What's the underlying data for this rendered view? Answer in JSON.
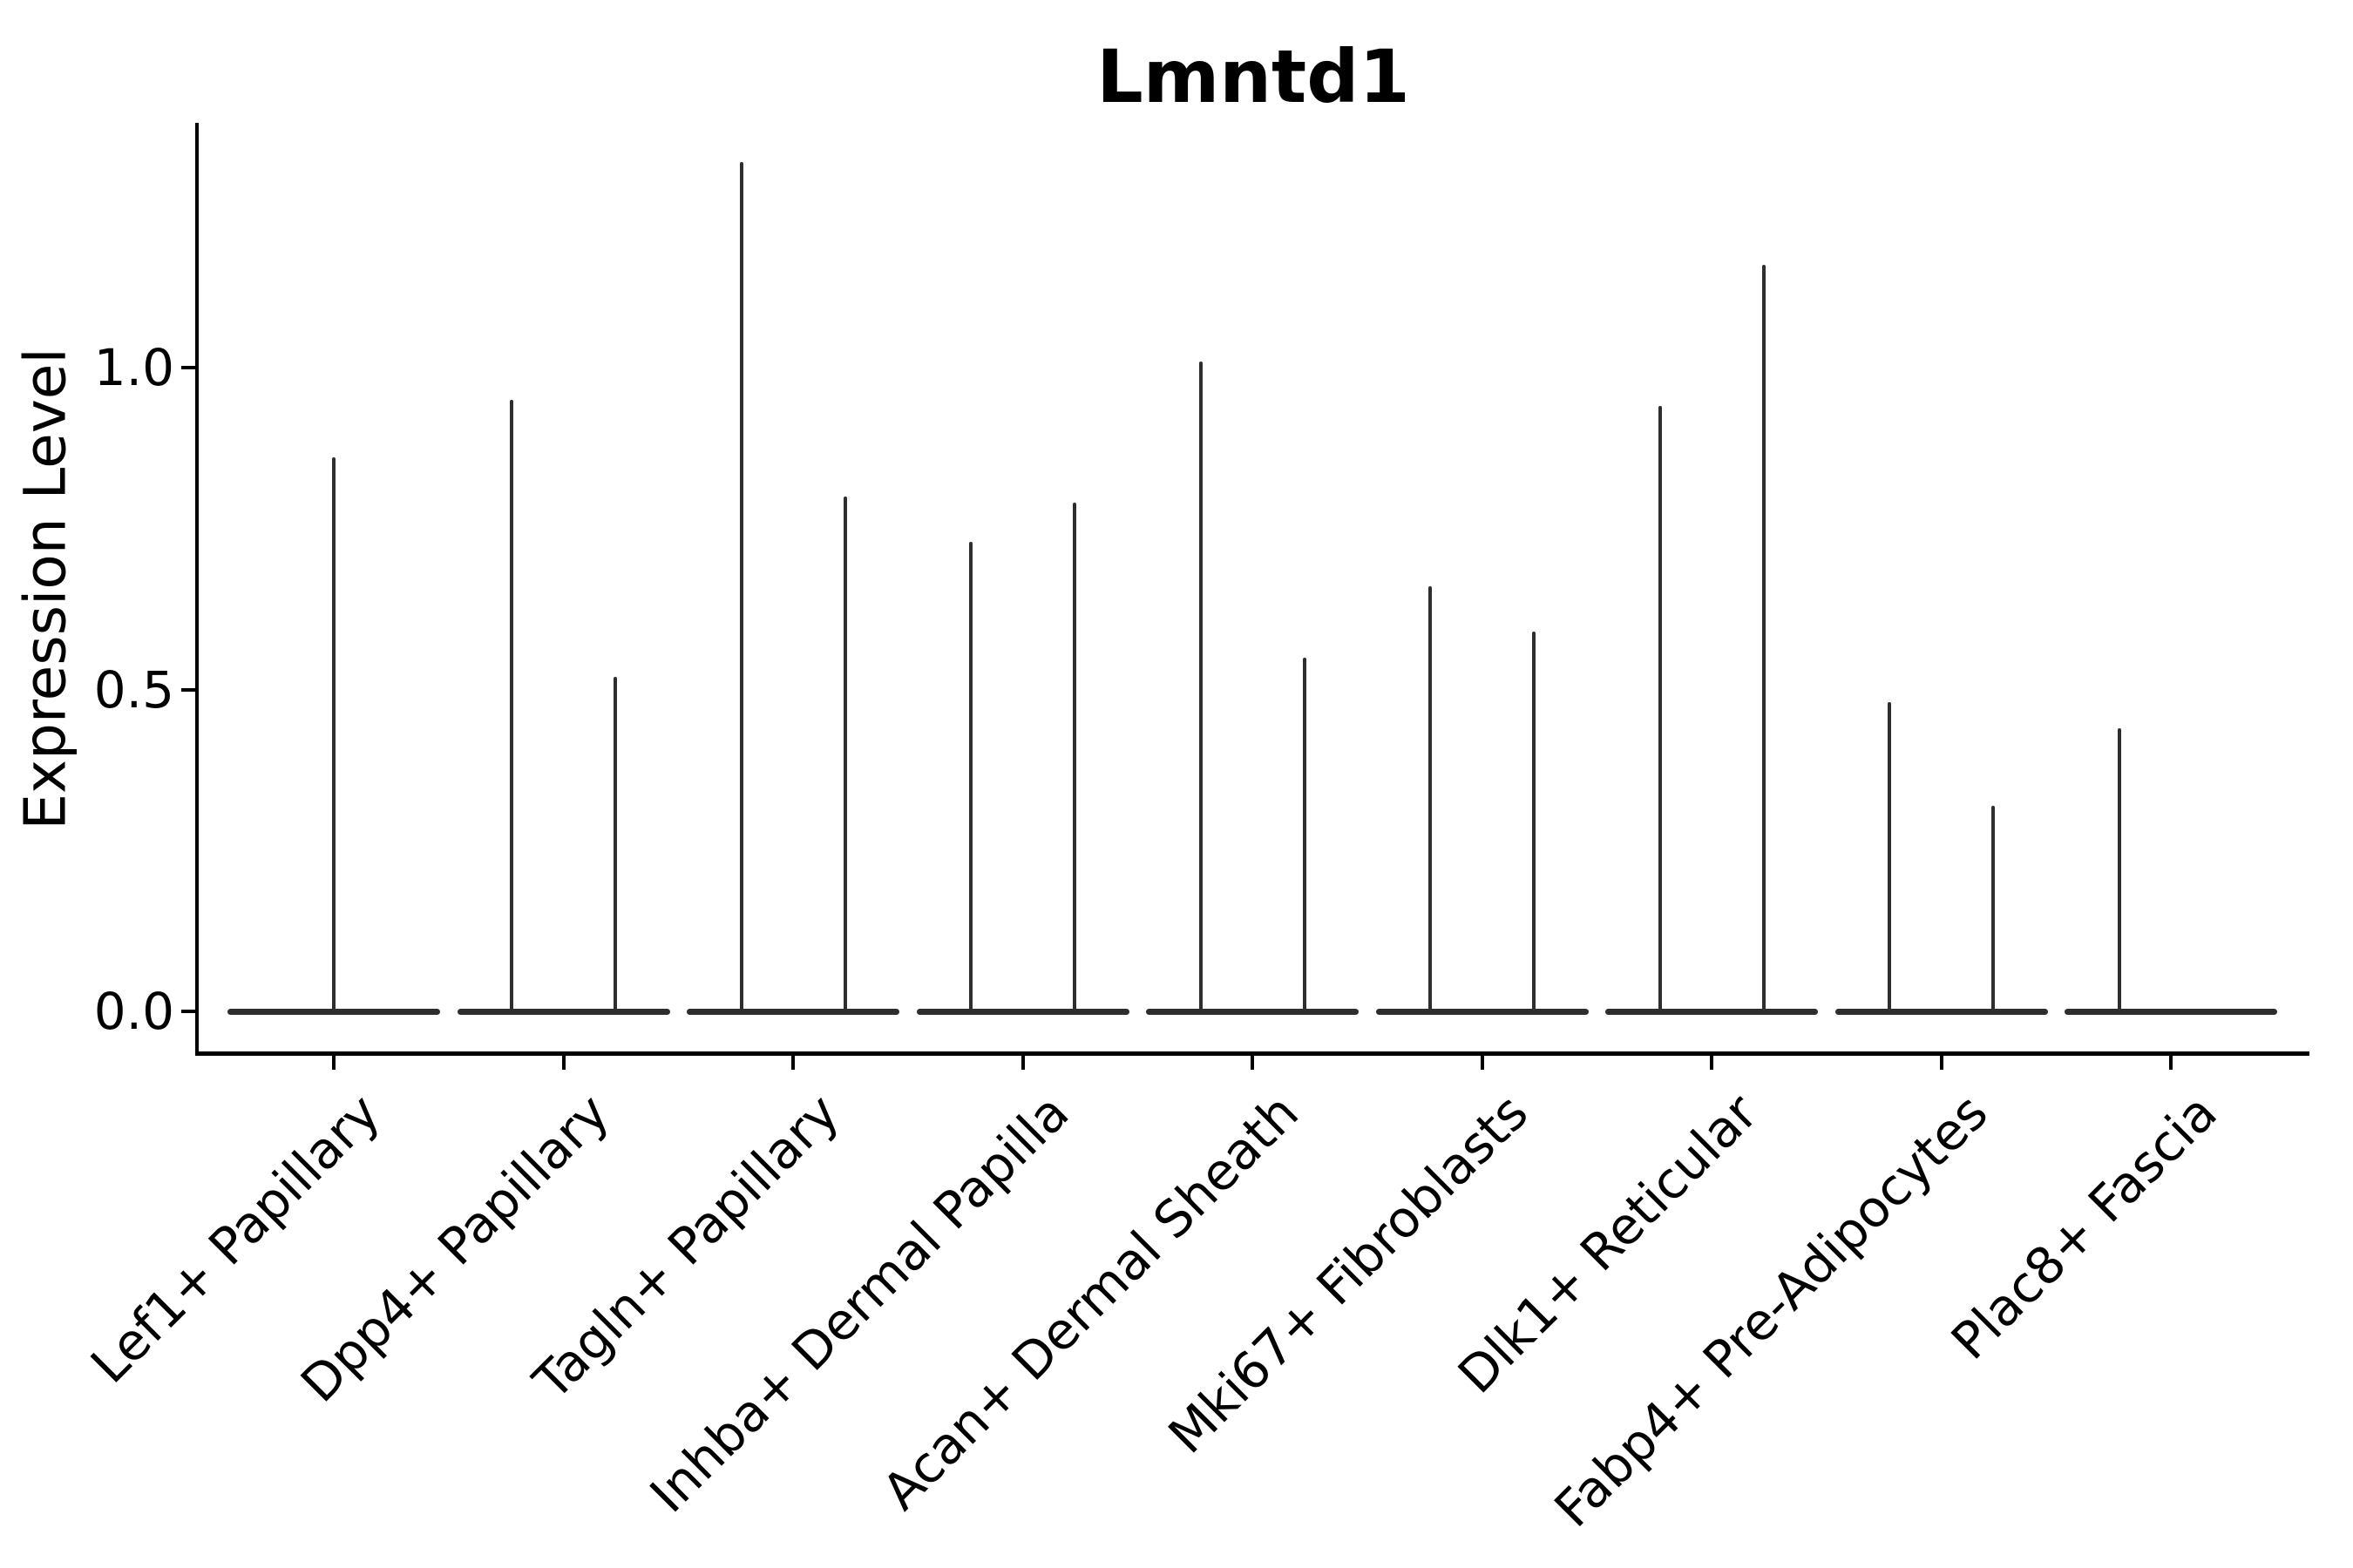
{
  "figure": {
    "title": "Lmntd1",
    "background_color": "#ffffff"
  },
  "chart_data": {
    "type": "violin",
    "title": "Lmntd1",
    "xlabel": "",
    "ylabel": "Expression Level",
    "grid": false,
    "legend": "none",
    "x_tick_rotation_deg": 45,
    "ylim": [
      0,
      1.35
    ],
    "yticks": [
      {
        "label": "0.0",
        "value": 0.0
      },
      {
        "label": "0.5",
        "value": 0.5
      },
      {
        "label": "1.0",
        "value": 1.0
      }
    ],
    "categories": [
      "Lef1+ Papillary",
      "Dpp4+ Papillary",
      "Tagln+ Papillary",
      "Inhba+ Dermal Papilla",
      "Acan+ Dermal Sheath",
      "Mki67+ Fibroblasts",
      "Dlk1+ Reticular",
      "Fabp4+ Pre-Adipocytes",
      "Plac8+ Fascia"
    ],
    "description": "Violin plot of Lmntd1 expression; each violin collapses to a bar at 0 with a thin spike up to its maximum expression value. Most categories show two violins side by side.",
    "groups": [
      {
        "category": "Lef1+ Papillary",
        "violins": [
          {
            "position": "center",
            "peak_expression": 0.86
          }
        ]
      },
      {
        "category": "Dpp4+ Papillary",
        "violins": [
          {
            "position": "left",
            "peak_expression": 0.95
          },
          {
            "position": "right",
            "peak_expression": 0.52
          }
        ]
      },
      {
        "category": "Tagln+ Papillary",
        "violins": [
          {
            "position": "left",
            "peak_expression": 1.32
          },
          {
            "position": "right",
            "peak_expression": 0.8
          }
        ]
      },
      {
        "category": "Inhba+ Dermal Papilla",
        "violins": [
          {
            "position": "left",
            "peak_expression": 0.73
          },
          {
            "position": "right",
            "peak_expression": 0.79
          }
        ]
      },
      {
        "category": "Acan+ Dermal Sheath",
        "violins": [
          {
            "position": "left",
            "peak_expression": 1.01
          },
          {
            "position": "right",
            "peak_expression": 0.55
          }
        ]
      },
      {
        "category": "Mki67+ Fibroblasts",
        "violins": [
          {
            "position": "left",
            "peak_expression": 0.66
          },
          {
            "position": "right",
            "peak_expression": 0.59
          }
        ]
      },
      {
        "category": "Dlk1+ Reticular",
        "violins": [
          {
            "position": "left",
            "peak_expression": 0.94
          },
          {
            "position": "right",
            "peak_expression": 1.16
          }
        ]
      },
      {
        "category": "Fabp4+ Pre-Adipocytes",
        "violins": [
          {
            "position": "left",
            "peak_expression": 0.48
          },
          {
            "position": "right",
            "peak_expression": 0.32
          }
        ]
      },
      {
        "category": "Plac8+ Fascia",
        "violins": [
          {
            "position": "left",
            "peak_expression": 0.44
          }
        ]
      }
    ],
    "colors": {
      "violin": "#2e2e2e",
      "axis": "#000000",
      "text": "#000000",
      "background": "#ffffff"
    }
  }
}
